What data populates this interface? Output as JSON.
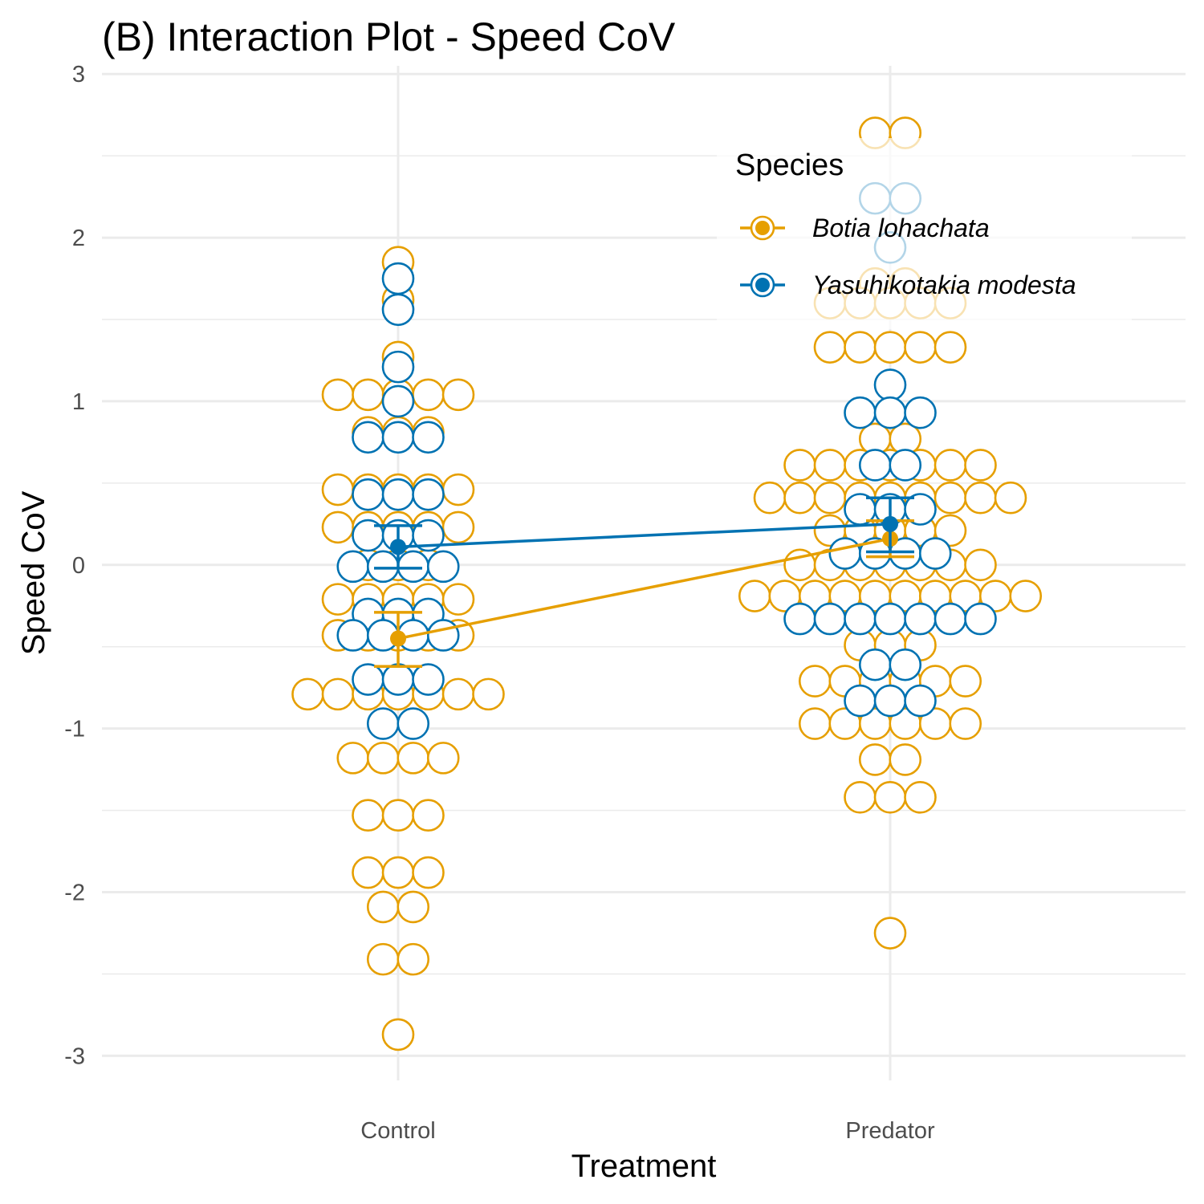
{
  "chart_data": {
    "type": "scatter",
    "title": "(B) Interaction Plot - Speed CoV",
    "xlabel": "Treatment",
    "ylabel": "Speed CoV",
    "categories": [
      "Control",
      "Predator"
    ],
    "ylim": [
      -3.15,
      3.05
    ],
    "y_ticks": [
      "-3",
      "-2",
      "-1",
      "0",
      "1",
      "2",
      "3"
    ],
    "grid": true,
    "legend": {
      "title": "Species",
      "placement": "top-right",
      "entries": [
        "Botia lohachata",
        "Yasuhikotakia modesta"
      ]
    },
    "colors": {
      "Botia lohachata": "#E69F00",
      "Yasuhikotakia modesta": "#0072B2",
      "grid": "#ebebeb"
    },
    "series": [
      {
        "name": "Botia lohachata",
        "mean": [
          -0.45,
          0.16
        ],
        "error_low": [
          -0.62,
          0.05
        ],
        "error_high": [
          -0.29,
          0.27
        ],
        "dots": {
          "Control": [
            [
              1.85,
              1
            ],
            [
              1.62,
              1
            ],
            [
              1.27,
              1
            ],
            [
              1.04,
              5
            ],
            [
              0.81,
              3
            ],
            [
              0.46,
              5
            ],
            [
              0.23,
              5
            ],
            [
              0.0,
              3
            ],
            [
              -0.21,
              5
            ],
            [
              -0.43,
              5
            ],
            [
              -0.79,
              7
            ],
            [
              -1.18,
              4
            ],
            [
              -1.53,
              3
            ],
            [
              -1.88,
              3
            ],
            [
              -2.09,
              2
            ],
            [
              -2.41,
              2
            ],
            [
              -2.87,
              1
            ]
          ],
          "Predator": [
            [
              2.64,
              2
            ],
            [
              1.72,
              2
            ],
            [
              1.6,
              5
            ],
            [
              1.33,
              5
            ],
            [
              0.77,
              2
            ],
            [
              0.61,
              7
            ],
            [
              0.41,
              9
            ],
            [
              0.21,
              5
            ],
            [
              0.0,
              7
            ],
            [
              -0.19,
              10
            ],
            [
              -0.49,
              3
            ],
            [
              -0.71,
              6
            ],
            [
              -0.97,
              6
            ],
            [
              -1.19,
              2
            ],
            [
              -1.42,
              3
            ],
            [
              -2.25,
              1
            ]
          ]
        }
      },
      {
        "name": "Yasuhikotakia modesta",
        "mean": [
          0.11,
          0.25
        ],
        "error_low": [
          -0.02,
          0.08
        ],
        "error_high": [
          0.24,
          0.41
        ],
        "dots": {
          "Control": [
            [
              1.75,
              1
            ],
            [
              1.56,
              1
            ],
            [
              1.21,
              1
            ],
            [
              1.0,
              1
            ],
            [
              0.78,
              3
            ],
            [
              0.43,
              3
            ],
            [
              0.18,
              3
            ],
            [
              -0.01,
              4
            ],
            [
              -0.3,
              3
            ],
            [
              -0.43,
              4
            ],
            [
              -0.7,
              3
            ],
            [
              -0.97,
              2
            ]
          ],
          "Predator": [
            [
              2.24,
              2
            ],
            [
              1.94,
              1
            ],
            [
              1.1,
              1
            ],
            [
              0.93,
              3
            ],
            [
              0.61,
              2
            ],
            [
              0.34,
              3
            ],
            [
              0.07,
              4
            ],
            [
              -0.33,
              7
            ],
            [
              -0.61,
              2
            ],
            [
              -0.83,
              3
            ]
          ]
        }
      }
    ]
  }
}
